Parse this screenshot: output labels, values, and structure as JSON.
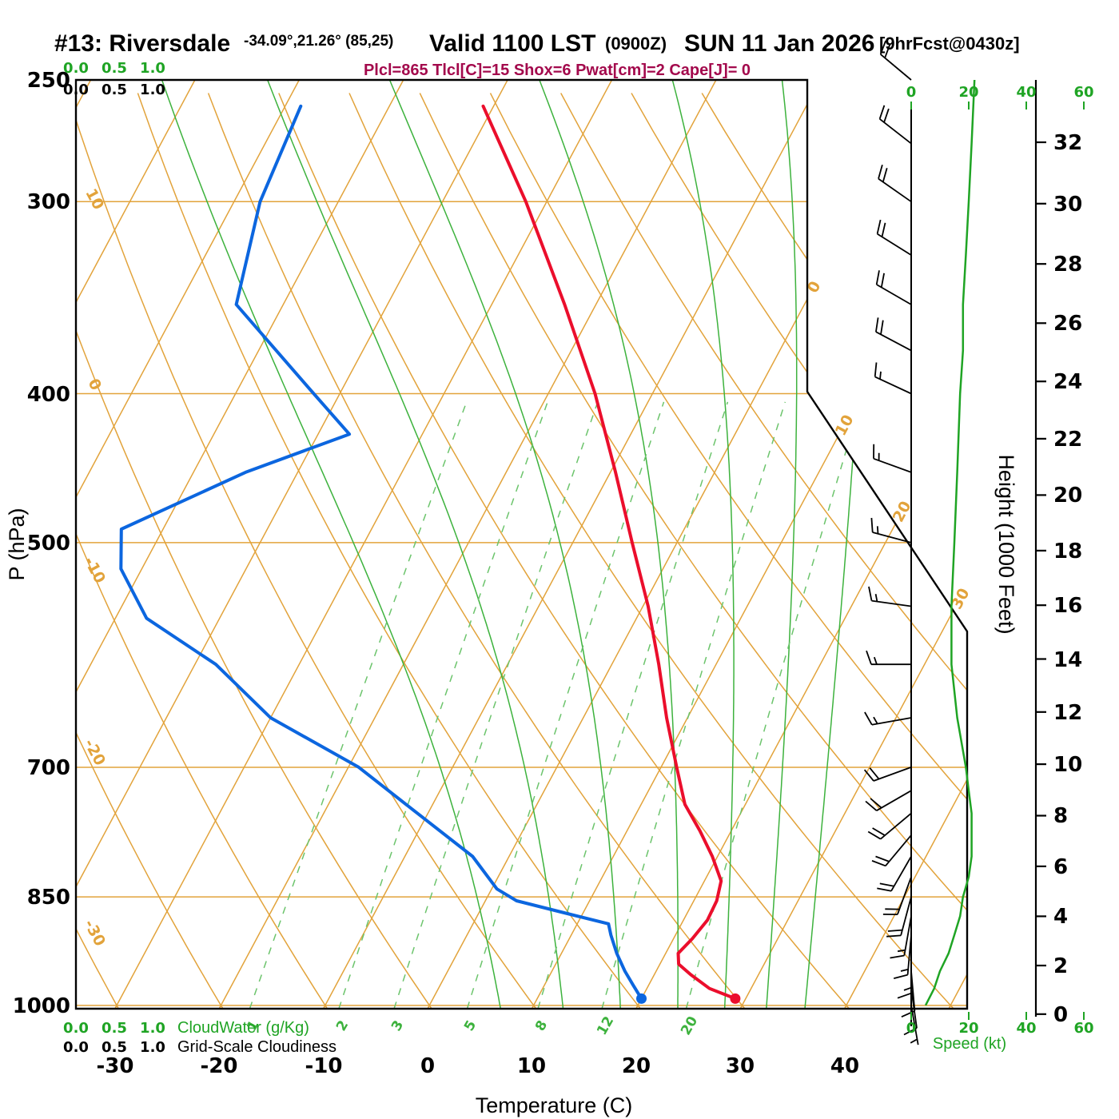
{
  "header": {
    "station": "#13: Riversdale",
    "coords": "-34.09°,21.26° (85,25)",
    "valid_label": "Valid 1100 LST",
    "valid_zulu": "(0900Z)",
    "valid_date": "SUN 11 Jan 2026",
    "forecast_tag": "[9hrFcst@0430z]",
    "indices_text": "Plcl=865 Tlcl[C]=15 Shox=6 Pwat[cm]=2 Cape[J]= 0"
  },
  "axes": {
    "pressure": {
      "label": "P (hPa)",
      "ticks": [
        250,
        300,
        400,
        500,
        700,
        850,
        1000
      ]
    },
    "temperature": {
      "label": "Temperature (C)",
      "ticks": [
        -30,
        -20,
        -10,
        0,
        10,
        20,
        30,
        40
      ]
    },
    "height": {
      "label": "Height (1000 Feet)",
      "ticks": [
        0,
        2,
        4,
        6,
        8,
        10,
        12,
        14,
        16,
        18,
        20,
        22,
        24,
        26,
        28,
        30,
        32
      ]
    },
    "speed": {
      "label": "Speed (kt)",
      "ticks": [
        0,
        20,
        40,
        60
      ]
    },
    "cloudwater": {
      "label": "CloudWater (g/Kg)",
      "ticks": [
        "0.0",
        "0.5",
        "1.0"
      ]
    },
    "cloudiness": {
      "label": "Grid-Scale Cloudiness",
      "ticks": [
        "0.0",
        "0.5",
        "1.0"
      ]
    }
  },
  "grid": {
    "isotherm_min": -110,
    "isotherm_max": 50,
    "isotherm_step": 10,
    "isotherm_edge_labels": [
      0,
      10,
      20,
      30
    ],
    "dry_adiabat_min": -40,
    "dry_adiabat_max": 100,
    "dry_adiabat_step": 10,
    "dry_adiabat_edge_labels": [
      10,
      0,
      -10,
      -20,
      -30
    ],
    "moist_adiabat_surface_temps_c": [
      7,
      13,
      18.5,
      24,
      28.5,
      32.5,
      36.2
    ],
    "mixing_ratio_g_kg": [
      1,
      2,
      3,
      5,
      8,
      12,
      20
    ]
  },
  "chart_data": {
    "type": "line",
    "variant": "skew-t log-p sounding",
    "title": "#13: Riversdale  Valid 1100 LST (0900Z) SUN 11 Jan 2026 [9hrFcst@0430z]",
    "location": {
      "lat": -34.09,
      "lon": 21.26,
      "grid_point": "(85,25)"
    },
    "indices": {
      "Plcl_hPa": 865,
      "Tlcl_C": 15,
      "Showalter": 6,
      "Pwat_cm": 2,
      "Cape_J": 0
    },
    "pressure_axis_range_hPa": [
      1005,
      250
    ],
    "temperature_axis_range_C": [
      -35,
      40
    ],
    "legend_position": "none",
    "grid": true,
    "temperature_profile": {
      "pressure_hPa": [
        990,
        975,
        955,
        940,
        925,
        905,
        880,
        855,
        830,
        800,
        770,
        740,
        700,
        650,
        600,
        550,
        500,
        450,
        400,
        350,
        300,
        260
      ],
      "temperature_C": [
        29,
        26,
        23.5,
        21.8,
        21.2,
        21.8,
        22.3,
        22.2,
        21.6,
        19.5,
        17,
        14.2,
        11.5,
        8,
        4.5,
        0.5,
        -4.3,
        -9.5,
        -15.5,
        -23,
        -32,
        -41
      ]
    },
    "dewpoint_profile": {
      "pressure_hPa": [
        990,
        970,
        950,
        925,
        900,
        885,
        870,
        855,
        840,
        800,
        750,
        700,
        650,
        600,
        560,
        520,
        490,
        450,
        425,
        400,
        350,
        300,
        260
      ],
      "dewpoint_C": [
        20,
        18.5,
        17,
        15.3,
        13.8,
        13,
        8,
        3,
        0.5,
        -3.5,
        -11,
        -19,
        -30,
        -38,
        -47,
        -52,
        -54,
        -45,
        -37,
        -42.5,
        -54.5,
        -57.5,
        -58.5
      ]
    },
    "wind_profile": {
      "pressure_hPa": [
        1000,
        975,
        950,
        925,
        900,
        875,
        850,
        825,
        800,
        775,
        750,
        725,
        700,
        650,
        600,
        550,
        500,
        450,
        400,
        375,
        350,
        325,
        300,
        275,
        250
      ],
      "speed_kt": [
        5,
        8,
        10,
        13,
        15,
        17,
        18,
        20,
        21,
        21,
        21,
        20,
        19,
        16,
        14,
        14,
        15,
        16,
        17,
        18,
        18,
        19,
        20,
        21,
        22
      ],
      "direction_deg": [
        170,
        172,
        175,
        180,
        185,
        190,
        195,
        200,
        210,
        220,
        230,
        240,
        250,
        260,
        270,
        278,
        285,
        290,
        295,
        298,
        300,
        302,
        305,
        308,
        310
      ]
    },
    "surface": {
      "pressure_hPa": 990,
      "temperature_C": 29,
      "dewpoint_C": 20
    }
  },
  "colors": {
    "grid_orange": "#E2A33B",
    "green_bright": "#1FA424",
    "green_soft": "#3DB23D",
    "green_dashed": "#6CC46C",
    "temperature_red": "#EB0E2C",
    "dewpoint_blue": "#0C66DF",
    "indices_magenta": "#A3094C",
    "black": "#000000"
  }
}
